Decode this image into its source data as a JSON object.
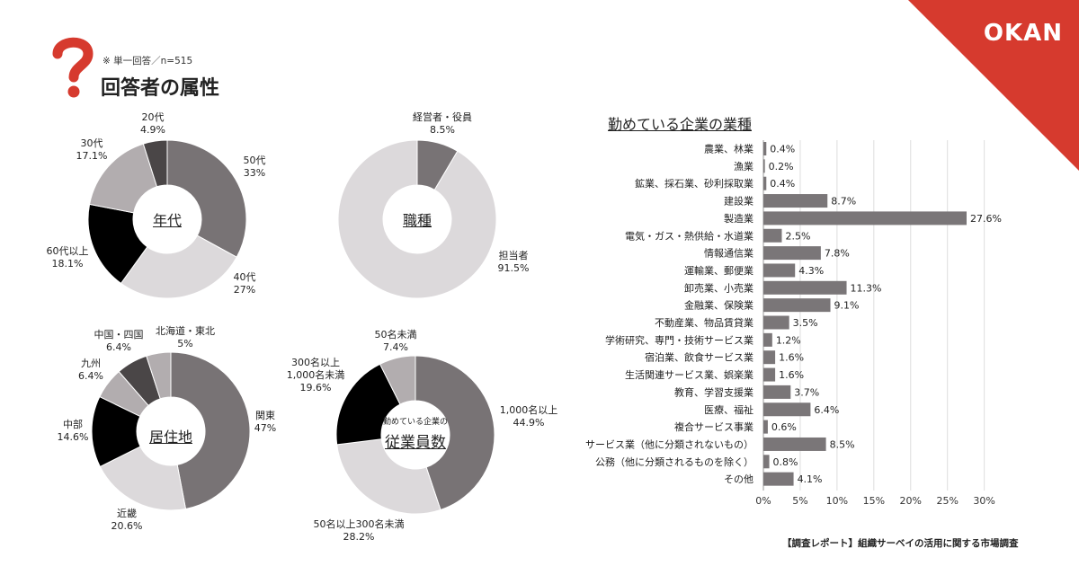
{
  "brand": {
    "logo": "OKAN",
    "accent": "#d63a2e"
  },
  "header": {
    "note": "※ 単一回答／n=515",
    "title": "回答者の属性"
  },
  "colors": {
    "dark_gray": "#787375",
    "light_gray": "#dcd9db",
    "mid_gray": "#b2adaf",
    "black": "#000000",
    "charcoal": "#4a4647",
    "bar": "#7a7678"
  },
  "donuts": {
    "age": {
      "center": "年代",
      "slices": [
        {
          "label": "50代",
          "value_text": "33%",
          "value": 33,
          "color": "#787375"
        },
        {
          "label": "40代",
          "value_text": "27%",
          "value": 27,
          "color": "#dcd9db"
        },
        {
          "label": "60代以上",
          "value_text": "18.1%",
          "value": 18.1,
          "color": "#000000"
        },
        {
          "label": "30代",
          "value_text": "17.1%",
          "value": 17.1,
          "color": "#b2adaf"
        },
        {
          "label": "20代",
          "value_text": "4.9%",
          "value": 4.9,
          "color": "#4a4647"
        }
      ]
    },
    "job": {
      "center": "職種",
      "slices": [
        {
          "label": "経営者・役員",
          "value_text": "8.5%",
          "value": 8.5,
          "color": "#787375"
        },
        {
          "label": "担当者",
          "value_text": "91.5%",
          "value": 91.5,
          "color": "#dcd9db"
        }
      ]
    },
    "region": {
      "center": "居住地",
      "slices": [
        {
          "label": "関東",
          "value_text": "47%",
          "value": 47,
          "color": "#787375"
        },
        {
          "label": "近畿",
          "value_text": "20.6%",
          "value": 20.6,
          "color": "#dcd9db"
        },
        {
          "label": "中部",
          "value_text": "14.6%",
          "value": 14.6,
          "color": "#000000"
        },
        {
          "label": "九州",
          "value_text": "6.4%",
          "value": 6.4,
          "color": "#b2adaf"
        },
        {
          "label": "中国・四国",
          "value_text": "6.4%",
          "value": 6.4,
          "color": "#4a4647"
        },
        {
          "label": "北海道・東北",
          "value_text": "5%",
          "value": 5,
          "color": "#b2adaf"
        }
      ]
    },
    "employees": {
      "center_small": "勤めている企業の",
      "center": "従業員数",
      "slices": [
        {
          "label": "1,000名以上",
          "value_text": "44.9%",
          "value": 44.9,
          "color": "#787375"
        },
        {
          "label": "50名以上300名未満",
          "value_text": "28.2%",
          "value": 28.2,
          "color": "#dcd9db"
        },
        {
          "label": "300名以上\n1,000名未満",
          "label_line1": "300名以上",
          "label_line2": "1,000名未満",
          "value_text": "19.6%",
          "value": 19.6,
          "color": "#000000"
        },
        {
          "label": "50名未満",
          "value_text": "7.4%",
          "value": 7.4,
          "color": "#b2adaf"
        }
      ]
    }
  },
  "chart_data": {
    "type": "bar",
    "orientation": "horizontal",
    "title": "勤めている企業の業種",
    "categories": [
      "農業、林業",
      "漁業",
      "鉱業、採石業、砂利採取業",
      "建設業",
      "製造業",
      "電気・ガス・熱供給・水道業",
      "情報通信業",
      "運輸業、郵便業",
      "卸売業、小売業",
      "金融業、保険業",
      "不動産業、物品賃貸業",
      "学術研究、専門・技術サービス業",
      "宿泊業、飲食サービス業",
      "生活関連サービス業、娯楽業",
      "教育、学習支援業",
      "医療、福祉",
      "複合サービス事業",
      "サービス業（他に分類されないもの）",
      "公務（他に分類されるものを除く）",
      "その他"
    ],
    "values": [
      0.4,
      0.2,
      0.4,
      8.7,
      27.6,
      2.5,
      7.8,
      4.3,
      11.3,
      9.1,
      3.5,
      1.2,
      1.6,
      1.6,
      3.7,
      6.4,
      0.6,
      8.5,
      0.8,
      4.1
    ],
    "value_labels": [
      "0.4%",
      "0.2%",
      "0.4%",
      "8.7%",
      "27.6%",
      "2.5%",
      "7.8%",
      "4.3%",
      "11.3%",
      "9.1%",
      "3.5%",
      "1.2%",
      "1.6%",
      "1.6%",
      "3.7%",
      "6.4%",
      "0.6%",
      "8.5%",
      "0.8%",
      "4.1%"
    ],
    "xlim": [
      0,
      30
    ],
    "ticks": [
      0,
      5,
      10,
      15,
      20,
      25,
      30
    ],
    "tick_labels": [
      "0%",
      "5%",
      "10%",
      "15%",
      "20%",
      "25%",
      "30%"
    ],
    "grid": true
  },
  "footer": "【調査レポート】組織サーベイの活用に関する市場調査"
}
